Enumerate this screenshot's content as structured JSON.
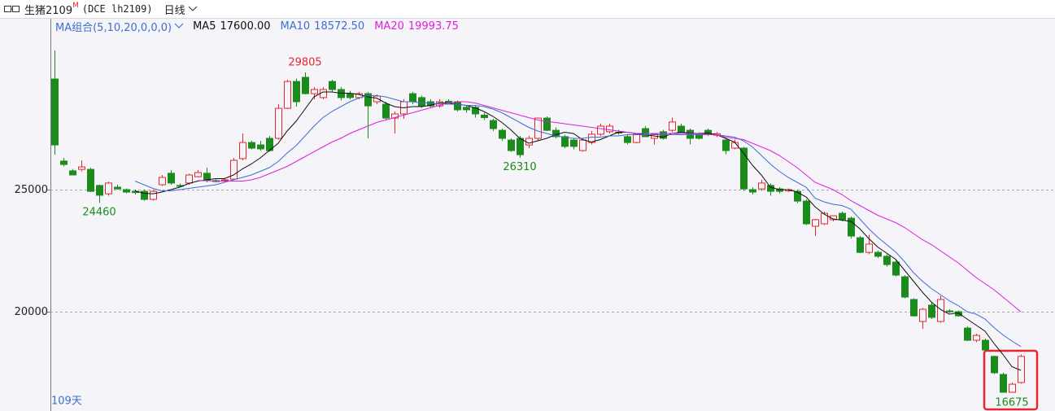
{
  "header": {
    "symbol": "生猪2109",
    "flag": "M",
    "code": "(DCE lh2109)",
    "period": "日线"
  },
  "chart_data": {
    "type": "candlestick",
    "indicator": "MA组合(5,10,20,0,0,0)",
    "days_label": "109天",
    "ylim": [
      16000,
      32000
    ],
    "yticks": [
      20000,
      25000
    ],
    "grid": true,
    "up_color": "#e8262d",
    "down_color": "#1b8c1b",
    "candles": {
      "open": [
        29530,
        26170,
        25770,
        25830,
        25830,
        25170,
        24830,
        25100,
        25000,
        24930,
        24930,
        24600,
        25200,
        25670,
        25170,
        25270,
        25530,
        25670,
        25370,
        25370,
        25430,
        26270,
        26930,
        26830,
        27100,
        27100,
        28330,
        29430,
        29600,
        28930,
        28770,
        29430,
        29100,
        28930,
        28770,
        28930,
        28600,
        28500,
        27930,
        28100,
        28930,
        28770,
        28600,
        28430,
        28620,
        28600,
        28370,
        28370,
        28050,
        27830,
        27430,
        27030,
        27100,
        26830,
        27100,
        27930,
        27430,
        27170,
        27030,
        26600,
        26930,
        27270,
        27370,
        27350,
        27170,
        26930,
        27500,
        27100,
        27370,
        27430,
        27600,
        27430,
        27270,
        27430,
        27230,
        27030,
        26700,
        26700,
        25000,
        25030,
        25170,
        25030,
        24950,
        24930,
        24530,
        23500,
        23600,
        23770,
        24030,
        23830,
        23030,
        22430,
        22430,
        22270,
        22030,
        21430,
        20500,
        19600,
        20270,
        19600,
        20030,
        20000,
        19330,
        18830,
        18830,
        18170,
        17430,
        16700,
        17100
      ],
      "high": [
        30700,
        26300,
        25850,
        26200,
        25900,
        25200,
        25330,
        25200,
        25050,
        25000,
        25000,
        24980,
        25600,
        25800,
        25250,
        25650,
        25800,
        25900,
        25450,
        25450,
        26300,
        27300,
        27000,
        27000,
        27200,
        28500,
        29500,
        29550,
        29805,
        29200,
        29200,
        29500,
        29200,
        29050,
        29000,
        29000,
        28900,
        28600,
        28200,
        28700,
        29000,
        28850,
        28700,
        28700,
        28700,
        28650,
        28450,
        28450,
        28150,
        27900,
        27500,
        27100,
        27200,
        27200,
        27950,
        28000,
        27550,
        27250,
        27100,
        27100,
        27400,
        27700,
        27700,
        27450,
        27250,
        27300,
        27600,
        27300,
        27450,
        27950,
        27700,
        27500,
        27350,
        27500,
        27350,
        27100,
        27050,
        26750,
        25100,
        25400,
        25250,
        25100,
        25050,
        25000,
        24600,
        23800,
        24100,
        23900,
        24100,
        23900,
        23100,
        23150,
        22500,
        22350,
        22100,
        21500,
        20550,
        20150,
        20400,
        20650,
        20100,
        20050,
        19400,
        19100,
        18900,
        18200,
        17500,
        17100,
        18250
      ],
      "low": [
        26430,
        25950,
        25600,
        25750,
        24900,
        24460,
        24750,
        25000,
        24850,
        24800,
        24550,
        24550,
        25150,
        25200,
        25100,
        25200,
        25500,
        25300,
        25300,
        25300,
        25400,
        26200,
        26650,
        26600,
        26550,
        27050,
        28300,
        28400,
        28900,
        28700,
        28700,
        29000,
        28650,
        28700,
        28700,
        27100,
        28500,
        27850,
        27300,
        27900,
        28500,
        28350,
        28350,
        28350,
        28500,
        28200,
        28150,
        27950,
        27850,
        27400,
        27000,
        26550,
        26310,
        26700,
        27000,
        27400,
        27100,
        26700,
        26650,
        26550,
        26850,
        27200,
        27300,
        27250,
        26850,
        26900,
        27150,
        26850,
        27050,
        27350,
        27350,
        26850,
        27050,
        27200,
        27150,
        26450,
        26650,
        24950,
        24800,
        24950,
        24750,
        24850,
        24900,
        24450,
        23550,
        23100,
        23550,
        23700,
        23700,
        23000,
        22400,
        22350,
        22200,
        21850,
        21450,
        20550,
        19800,
        19300,
        19700,
        19550,
        19950,
        19800,
        18800,
        18750,
        18400,
        17450,
        16700,
        16675,
        17050
      ],
      "close": [
        26830,
        26030,
        25600,
        25930,
        24930,
        24770,
        25270,
        25030,
        24900,
        24880,
        24600,
        24930,
        25500,
        25270,
        25150,
        25600,
        25700,
        25370,
        25330,
        25400,
        26200,
        26930,
        26700,
        26670,
        26600,
        28330,
        29430,
        28600,
        28930,
        29100,
        29100,
        29100,
        28770,
        28770,
        28930,
        28430,
        28830,
        27930,
        28100,
        28600,
        28600,
        28430,
        28430,
        28600,
        28580,
        28270,
        28270,
        28100,
        27950,
        27500,
        27100,
        26600,
        26430,
        27100,
        27930,
        27430,
        27170,
        26770,
        26770,
        27030,
        27270,
        27600,
        27600,
        27330,
        26930,
        27270,
        27170,
        27270,
        27100,
        27770,
        27370,
        27100,
        27100,
        27270,
        27290,
        26600,
        26930,
        25030,
        24900,
        25270,
        24930,
        24930,
        25000,
        24530,
        23600,
        23770,
        24030,
        23930,
        23770,
        23100,
        22430,
        22770,
        22270,
        21930,
        21500,
        20600,
        19830,
        20100,
        19770,
        20500,
        20000,
        19830,
        18830,
        19030,
        18430,
        17500,
        16700,
        17030,
        18170
      ]
    },
    "series": [
      {
        "name": "MA5",
        "color": "#111111",
        "value_label": "17600.00",
        "values": [
          null,
          null,
          null,
          null,
          null,
          null,
          null,
          null,
          null,
          24950,
          24850,
          24830,
          24900,
          25000,
          25100,
          25250,
          25350,
          25400,
          25450,
          25450,
          25600,
          25850,
          26050,
          26300,
          26600,
          26900,
          27400,
          27800,
          28300,
          28800,
          29000,
          29000,
          28950,
          28950,
          28900,
          28800,
          28750,
          28550,
          28400,
          28350,
          28400,
          28400,
          28450,
          28550,
          28550,
          28500,
          28450,
          28350,
          28200,
          28000,
          27750,
          27450,
          27100,
          26900,
          27000,
          27100,
          27250,
          27350,
          27300,
          27050,
          26950,
          27050,
          27200,
          27350,
          27350,
          27300,
          27250,
          27200,
          27150,
          27300,
          27350,
          27320,
          27300,
          27320,
          27250,
          27100,
          26950,
          26500,
          26000,
          25600,
          25100,
          25000,
          25000,
          24900,
          24700,
          24300,
          24000,
          23800,
          23750,
          23700,
          23400,
          23000,
          22650,
          22400,
          22150,
          21700,
          21250,
          20800,
          20400,
          20100,
          19900,
          19950,
          19700,
          19450,
          19200,
          18700,
          18250,
          17750,
          17600
        ]
      },
      {
        "name": "MA10",
        "color": "#3d6fd0",
        "value_label": "18572.50",
        "values": [
          null,
          null,
          null,
          null,
          null,
          null,
          null,
          null,
          null,
          25350,
          25200,
          25050,
          24950,
          24950,
          25000,
          25050,
          25100,
          25150,
          25200,
          25300,
          25400,
          25500,
          25600,
          25750,
          25900,
          26150,
          26500,
          26800,
          27200,
          27600,
          27950,
          28200,
          28400,
          28600,
          28750,
          28850,
          28850,
          28800,
          28700,
          28600,
          28600,
          28550,
          28550,
          28500,
          28500,
          28500,
          28450,
          28450,
          28400,
          28300,
          28150,
          27950,
          27750,
          27550,
          27400,
          27300,
          27200,
          27150,
          27100,
          27100,
          27150,
          27150,
          27200,
          27200,
          27250,
          27250,
          27250,
          27250,
          27250,
          27250,
          27250,
          27250,
          27250,
          27250,
          27250,
          27200,
          27150,
          27000,
          26750,
          26400,
          26050,
          25750,
          25500,
          25300,
          25100,
          24650,
          24500,
          24400,
          24350,
          24200,
          23800,
          23400,
          23050,
          22750,
          22450,
          22050,
          21600,
          21250,
          20950,
          20700,
          20450,
          20250,
          20000,
          19900,
          19700,
          19350,
          19050,
          18800,
          18572.5
        ]
      },
      {
        "name": "MA20",
        "color": "#e020d8",
        "value_label": "19993.75",
        "values": [
          null,
          null,
          null,
          null,
          null,
          null,
          null,
          null,
          null,
          null,
          null,
          null,
          null,
          null,
          null,
          null,
          25370,
          25370,
          25350,
          25350,
          25350,
          25350,
          25400,
          25500,
          25650,
          25800,
          25950,
          26150,
          26350,
          26550,
          26750,
          26950,
          27100,
          27300,
          27450,
          27600,
          27750,
          27850,
          27950,
          28050,
          28150,
          28250,
          28350,
          28450,
          28550,
          28600,
          28600,
          28550,
          28450,
          28350,
          28250,
          28150,
          28050,
          27950,
          27850,
          27800,
          27750,
          27700,
          27650,
          27600,
          27550,
          27500,
          27450,
          27400,
          27350,
          27300,
          27300,
          27300,
          27300,
          27300,
          27300,
          27300,
          27300,
          27250,
          27250,
          27150,
          27100,
          27050,
          26900,
          26750,
          26600,
          26400,
          26150,
          25900,
          25600,
          25300,
          25150,
          25000,
          24800,
          24550,
          24350,
          24150,
          23950,
          23800,
          23650,
          23450,
          23200,
          22950,
          22750,
          22500,
          22250,
          22000,
          21700,
          21400,
          21150,
          20900,
          20600,
          20300,
          19993.75
        ]
      }
    ],
    "annotations": [
      {
        "label": "29805",
        "index": 28,
        "at": "high",
        "color": "#e8262d"
      },
      {
        "label": "24460",
        "index": 5,
        "at": "low",
        "color": "#1b8c1b"
      },
      {
        "label": "26310",
        "index": 52,
        "at": "low",
        "color": "#1b8c1b"
      },
      {
        "label": "16675",
        "index": 107,
        "at": "low",
        "color": "#1b8c1b"
      }
    ]
  }
}
